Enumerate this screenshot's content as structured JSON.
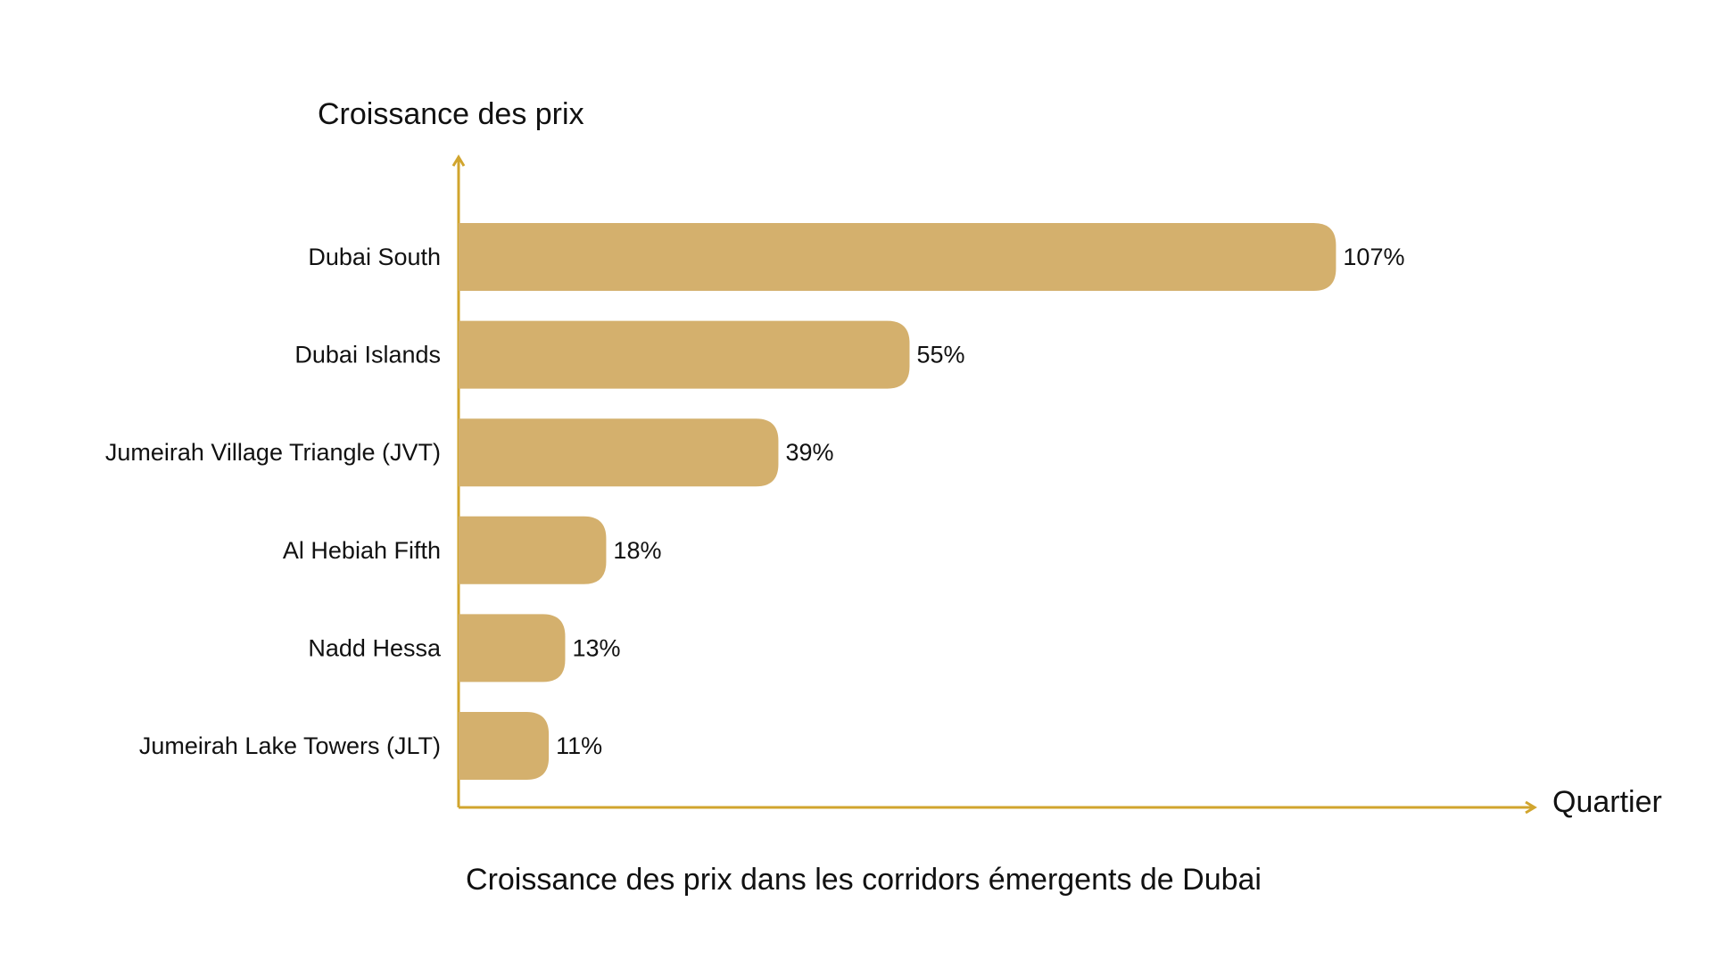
{
  "chart_data": {
    "type": "bar",
    "orientation": "horizontal",
    "title": "Croissance des prix dans les corridors émergents de Dubai",
    "ylabel": "Croissance des prix",
    "xlabel": "Quartier",
    "categories": [
      "Dubai South",
      "Dubai Islands",
      "Jumeirah Village Triangle (JVT)",
      "Al Hebiah Fifth",
      "Nadd Hessa",
      "Jumeirah Lake Towers (JLT)"
    ],
    "values": [
      107,
      55,
      39,
      18,
      13,
      11
    ],
    "data_labels": [
      "107%",
      "55%",
      "39%",
      "18%",
      "13%",
      "11%"
    ],
    "value_unit": "%",
    "xlim": [
      0,
      131
    ],
    "grid": false,
    "legend": "none",
    "colors": {
      "bar": "#D4B06D",
      "axis": "#D1A52E",
      "text": "#111111"
    }
  }
}
